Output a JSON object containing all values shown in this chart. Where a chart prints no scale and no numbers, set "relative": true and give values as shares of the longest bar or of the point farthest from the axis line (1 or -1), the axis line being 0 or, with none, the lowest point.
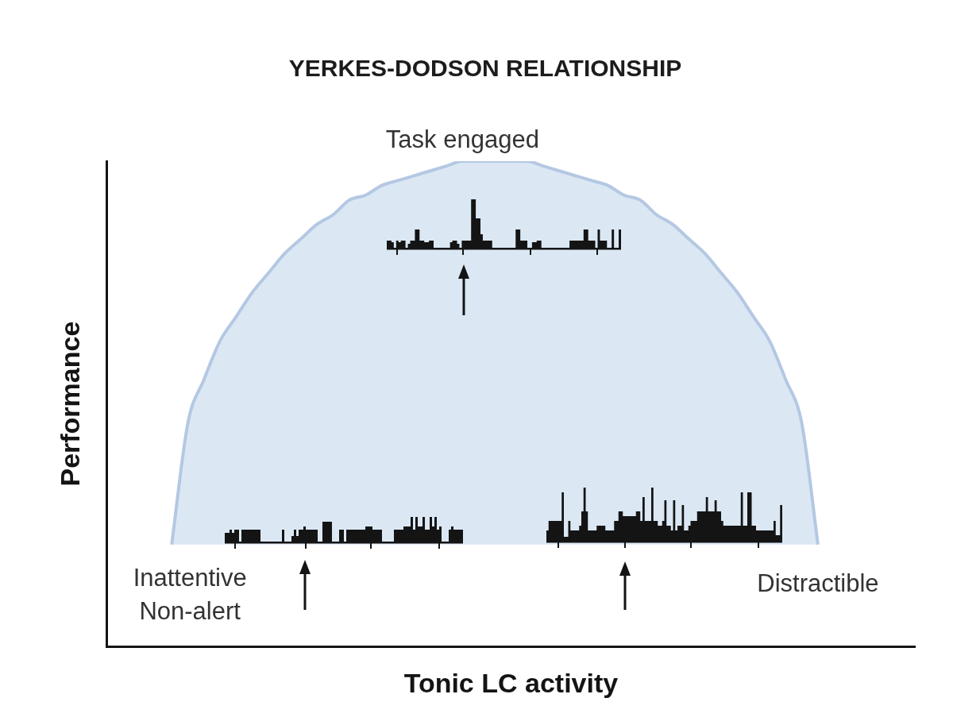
{
  "chart_data": {
    "type": "area",
    "title": "YERKES-DODSON RELATIONSHIP",
    "xlabel": "Tonic LC activity",
    "ylabel": "Performance",
    "relative": true,
    "categories": [
      null,
      null,
      null,
      null,
      null,
      null,
      null,
      null,
      null,
      null,
      null,
      null,
      null,
      null,
      null,
      null,
      null,
      null,
      null,
      null,
      null,
      null,
      null,
      null,
      null,
      null,
      null,
      null,
      null,
      null,
      null,
      null,
      null,
      null,
      null,
      null,
      null,
      null,
      null,
      null,
      null,
      null,
      null,
      null,
      null,
      null,
      null,
      null,
      null,
      null,
      null
    ],
    "values": [
      null,
      null,
      null,
      null,
      0.21,
      0.46,
      0.55,
      0.63,
      0.68,
      0.73,
      0.77,
      0.81,
      0.84,
      0.87,
      0.89,
      0.92,
      0.93,
      0.95,
      0.96,
      0.97,
      0.98,
      0.99,
      1,
      1,
      1,
      1,
      1,
      0.99,
      0.98,
      0.97,
      0.96,
      0.95,
      0.93,
      0.92,
      0.89,
      0.87,
      0.84,
      0.81,
      0.77,
      0.73,
      0.68,
      0.63,
      0.55,
      0.46,
      0.21,
      null,
      null,
      null,
      null,
      null,
      null
    ],
    "color": "#dbe8f4",
    "annotations": [
      "Task engaged",
      "Inattentive\nNon-alert",
      "Distractible"
    ]
  }
}
